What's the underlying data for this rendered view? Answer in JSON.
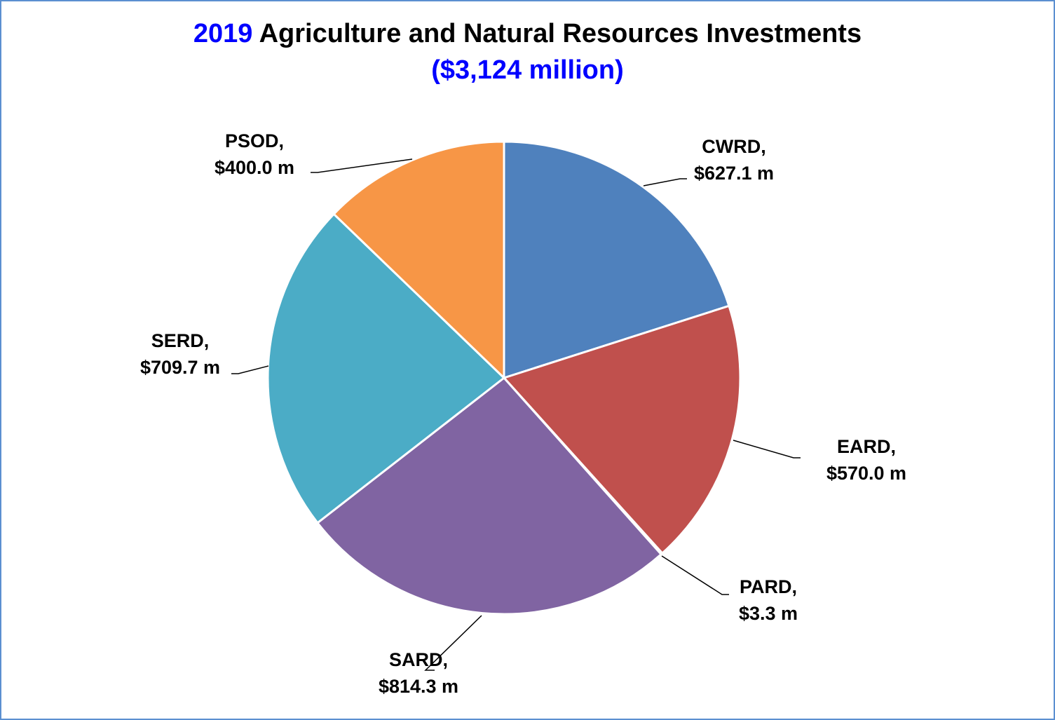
{
  "title": {
    "year": "2019",
    "main": " Agriculture and Natural Resources Investments",
    "subtitle": "($3,124 million)"
  },
  "colors": {
    "accent": "#0000ff",
    "frame": "#5b8fd0"
  },
  "chart_data": {
    "type": "pie",
    "start_angle_deg": 0,
    "direction": "clockwise",
    "slices": [
      {
        "name": "CWRD",
        "value": 627.1,
        "label_line1": "CWRD,",
        "label_line2": "$627.1 m",
        "color": "#4f81bd"
      },
      {
        "name": "EARD",
        "value": 570.0,
        "label_line1": "EARD,",
        "label_line2": "$570.0 m",
        "color": "#c0504d"
      },
      {
        "name": "PARD",
        "value": 3.3,
        "label_line1": "PARD,",
        "label_line2": "$3.3 m",
        "color": "#9bbb59"
      },
      {
        "name": "SARD",
        "value": 814.3,
        "label_line1": "SARD,",
        "label_line2": "$814.3 m",
        "color": "#8064a2"
      },
      {
        "name": "SERD",
        "value": 709.7,
        "label_line1": "SERD,",
        "label_line2": "$709.7 m",
        "color": "#4bacc6"
      },
      {
        "name": "PSOD",
        "value": 400.0,
        "label_line1": "PSOD,",
        "label_line2": "$400.0 m",
        "color": "#f79646"
      }
    ]
  }
}
